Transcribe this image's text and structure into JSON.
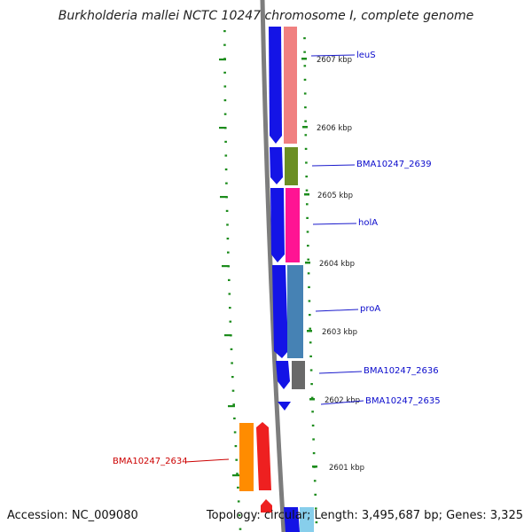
{
  "title": "Burkholderia mallei NCTC 10247 chromosome I, complete genome",
  "footer": {
    "accession": "Accession: NC_009080",
    "summary": "Topology: circular; Length: 3,495,687 bp; Genes: 3,325"
  },
  "colors": {
    "forward_cds": "#1414e6",
    "reverse_cds": "#ee2222",
    "backbone": "#7a7a7a",
    "ticks": "#1c8c1c",
    "forward_label": "#0a0acc",
    "reverse_label": "#cc0000"
  },
  "scale_labels": [
    "2607 kbp",
    "2606 kbp",
    "2605 kbp",
    "2604 kbp",
    "2603 kbp",
    "2602 kbp",
    "2601 kbp"
  ],
  "genes": [
    {
      "name": "leuS",
      "color": "#f08080"
    },
    {
      "name": "BMA10247_2639",
      "color": "#6b8e23"
    },
    {
      "name": "holA",
      "color": "#ff1493"
    },
    {
      "name": "proA",
      "color": "#4682b4"
    },
    {
      "name": "BMA10247_2636",
      "color": "#696969"
    },
    {
      "name": "BMA10247_2635",
      "color": "#00bfff"
    },
    {
      "name": "BMA10247_2634",
      "color": "#ff8c00"
    }
  ]
}
